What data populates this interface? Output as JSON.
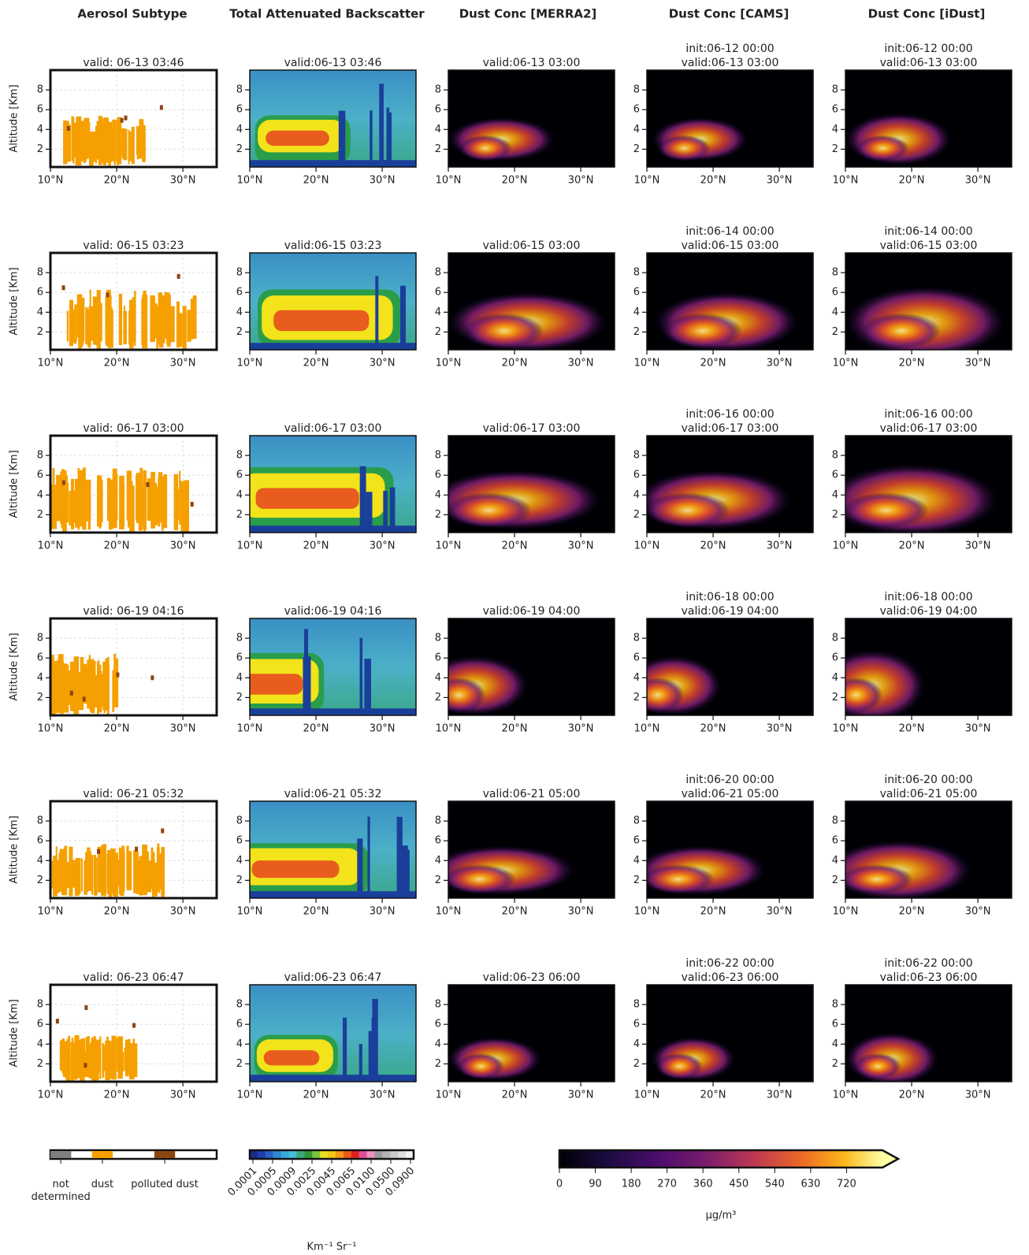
{
  "chart_data": {
    "type": "heatmap-grid",
    "column_titles": [
      "Aerosol Subtype",
      "Total Attenuated Backscatter",
      "Dust Conc [MERRA2]",
      "Dust Conc [CAMS]",
      "Dust Conc [iDust]"
    ],
    "ylabel": "Altitude [Km]",
    "xlim": [
      10,
      35.1
    ],
    "xticks": [
      {
        "value": 10,
        "label": "10°N"
      },
      {
        "value": 20,
        "label": "20°N"
      },
      {
        "value": 30,
        "label": "30°N"
      }
    ],
    "ylim": [
      0.2,
      10
    ],
    "yticks": [
      2,
      4,
      6,
      8
    ],
    "panel_titles": [
      [
        [
          "valid: 06-13 03:46"
        ],
        [
          "valid:06-13 03:46"
        ],
        [
          "valid:06-13 03:00"
        ],
        [
          "init:06-12 00:00",
          "valid:06-13 03:00"
        ],
        [
          "init:06-12 00:00",
          "valid:06-13 03:00"
        ]
      ],
      [
        [
          "valid: 06-15 03:23"
        ],
        [
          "valid:06-15 03:23"
        ],
        [
          "valid:06-15 03:00"
        ],
        [
          "init:06-14 00:00",
          "valid:06-15 03:00"
        ],
        [
          "init:06-14 00:00",
          "valid:06-15 03:00"
        ]
      ],
      [
        [
          "valid: 06-17 03:00"
        ],
        [
          "valid:06-17 03:00"
        ],
        [
          "valid:06-17 03:00"
        ],
        [
          "init:06-16 00:00",
          "valid:06-17 03:00"
        ],
        [
          "init:06-16 00:00",
          "valid:06-17 03:00"
        ]
      ],
      [
        [
          "valid: 06-19 04:16"
        ],
        [
          "valid:06-19 04:16"
        ],
        [
          "valid:06-19 04:00"
        ],
        [
          "init:06-18 00:00",
          "valid:06-19 04:00"
        ],
        [
          "init:06-18 00:00",
          "valid:06-19 04:00"
        ]
      ],
      [
        [
          "valid: 06-21 05:32"
        ],
        [
          "valid:06-21 05:32"
        ],
        [
          "valid:06-21 05:00"
        ],
        [
          "init:06-20 00:00",
          "valid:06-21 05:00"
        ],
        [
          "init:06-20 00:00",
          "valid:06-21 05:00"
        ]
      ],
      [
        [
          "valid: 06-23 06:47"
        ],
        [
          "valid:06-23 06:47"
        ],
        [
          "valid:06-23 06:00"
        ],
        [
          "init:06-22 00:00",
          "valid:06-23 06:00"
        ],
        [
          "init:06-22 00:00",
          "valid:06-23 06:00"
        ]
      ]
    ],
    "aerosol_legend": {
      "categories": [
        "not determined",
        "dust",
        "polluted dust"
      ],
      "colors": [
        "#7f7f7f",
        "#f5a000",
        "#8b4513"
      ]
    },
    "backscatter_colorbar": {
      "ticks": [
        0.0001,
        0.0005,
        0.0009,
        0.0025,
        0.0045,
        0.0065,
        {
          "value": 0.01,
          "label": "0.0100"
        },
        {
          "value": 0.05,
          "label": "0.0500"
        },
        {
          "value": 0.09,
          "label": "0.0900"
        }
      ],
      "label": "Km⁻¹ Sr⁻¹"
    },
    "dust_colorbar": {
      "clim": [
        0,
        810
      ],
      "ticks": [
        0,
        90,
        180,
        270,
        360,
        450,
        540,
        630,
        720
      ],
      "label": "μg/m³"
    }
  }
}
